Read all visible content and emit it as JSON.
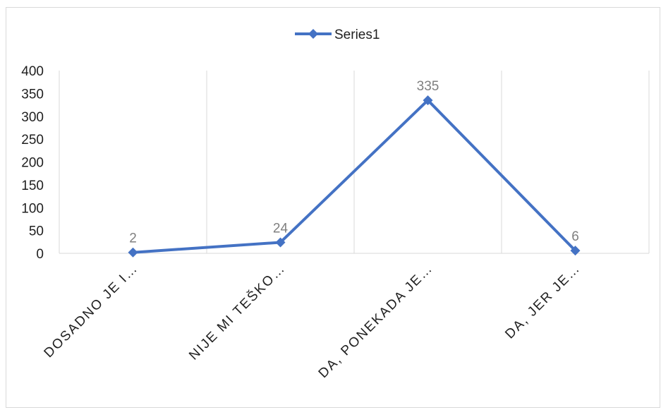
{
  "chart_data": {
    "type": "line",
    "title": "",
    "xlabel": "",
    "ylabel": "",
    "categories": [
      "DOSADNO JE I…",
      "NIJE MI TEŠKO…",
      "DA, PONEKADA JE…",
      "DA, JER JE…"
    ],
    "series": [
      {
        "name": "Series1",
        "values": [
          2,
          24,
          335,
          6
        ],
        "color": "#4472C4",
        "marker": "diamond"
      }
    ],
    "data_labels": [
      "2",
      "24",
      "335",
      "6"
    ],
    "ylim": [
      0,
      400
    ],
    "yticks": [
      0,
      50,
      100,
      150,
      200,
      250,
      300,
      350,
      400
    ],
    "grid": "vertical",
    "legend_position": "top"
  }
}
